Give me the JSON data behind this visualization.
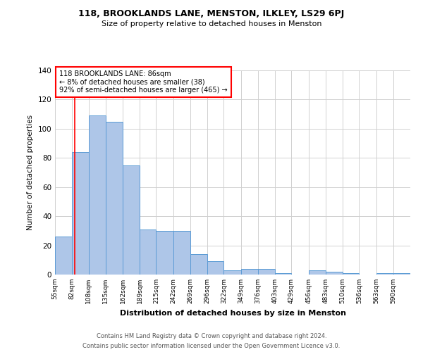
{
  "title1": "118, BROOKLANDS LANE, MENSTON, ILKLEY, LS29 6PJ",
  "title2": "Size of property relative to detached houses in Menston",
  "xlabel": "Distribution of detached houses by size in Menston",
  "ylabel": "Number of detached properties",
  "footnote1": "Contains HM Land Registry data © Crown copyright and database right 2024.",
  "footnote2": "Contains public sector information licensed under the Open Government Licence v3.0.",
  "annotation_line1": "118 BROOKLANDS LANE: 86sqm",
  "annotation_line2": "← 8% of detached houses are smaller (38)",
  "annotation_line3": "92% of semi-detached houses are larger (465) →",
  "bar_edges": [
    55,
    82,
    108,
    135,
    162,
    189,
    215,
    242,
    269,
    296,
    322,
    349,
    376,
    403,
    429,
    456,
    483,
    510,
    536,
    563,
    590
  ],
  "bar_heights": [
    26,
    84,
    109,
    105,
    75,
    31,
    30,
    30,
    14,
    9,
    3,
    4,
    4,
    1,
    0,
    3,
    2,
    1,
    0,
    1,
    1
  ],
  "bar_color": "#aec6e8",
  "bar_edge_color": "#5b9bd5",
  "red_line_x": 86,
  "ylim": [
    0,
    140
  ],
  "yticks": [
    0,
    20,
    40,
    60,
    80,
    100,
    120,
    140
  ],
  "bg_color": "#ffffff",
  "grid_color": "#d0d0d0"
}
